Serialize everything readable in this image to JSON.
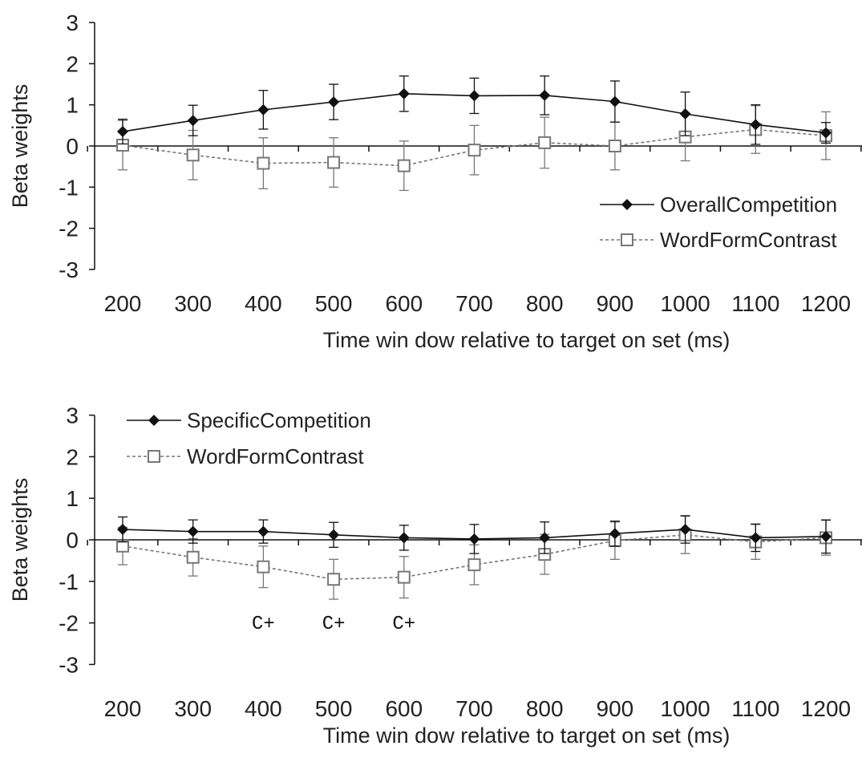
{
  "chart_data": [
    {
      "type": "line",
      "categories": [
        "200",
        "300",
        "400",
        "500",
        "600",
        "700",
        "800",
        "900",
        "1000",
        "1100",
        "1200"
      ],
      "xlabel": "Time win dow relative to target on set (ms)",
      "ylabel": "Beta weights",
      "ylim": [
        -3,
        3
      ],
      "yticks": [
        "3",
        "2",
        "1",
        "0",
        "-1",
        "-2",
        "-3"
      ],
      "grid": false,
      "legend_position": "bottom-right",
      "annotations": [],
      "series": [
        {
          "name": "OverallCompetition",
          "marker": "filled-diamond",
          "line": "solid",
          "color": "#111111",
          "values": [
            0.35,
            0.62,
            0.88,
            1.07,
            1.27,
            1.22,
            1.23,
            1.08,
            0.78,
            0.52,
            0.32
          ],
          "errors": [
            0.3,
            0.37,
            0.47,
            0.43,
            0.43,
            0.43,
            0.47,
            0.5,
            0.53,
            0.48,
            0.25
          ]
        },
        {
          "name": "WordFormContrast",
          "marker": "open-square",
          "line": "dashed",
          "color": "#777777",
          "values": [
            0.02,
            -0.22,
            -0.42,
            -0.4,
            -0.48,
            -0.1,
            0.08,
            0.0,
            0.22,
            0.4,
            0.25
          ],
          "errors": [
            0.6,
            0.6,
            0.62,
            0.6,
            0.6,
            0.6,
            0.62,
            0.58,
            0.58,
            0.58,
            0.58
          ]
        }
      ]
    },
    {
      "type": "line",
      "categories": [
        "200",
        "300",
        "400",
        "500",
        "600",
        "700",
        "800",
        "900",
        "1000",
        "1100",
        "1200"
      ],
      "xlabel": "Time win dow relative to target on set (ms)",
      "ylabel": "Beta weights",
      "ylim": [
        -3,
        3
      ],
      "yticks": [
        "3",
        "2",
        "1",
        "0",
        "-1",
        "-2",
        "-3"
      ],
      "grid": false,
      "legend_position": "top-left",
      "annotations": [
        {
          "x": "400",
          "text": "C+"
        },
        {
          "x": "500",
          "text": "C+"
        },
        {
          "x": "600",
          "text": "C+"
        }
      ],
      "series": [
        {
          "name": "SpecificCompetition",
          "marker": "filled-diamond",
          "line": "solid",
          "color": "#111111",
          "values": [
            0.25,
            0.2,
            0.2,
            0.12,
            0.05,
            0.02,
            0.05,
            0.15,
            0.25,
            0.05,
            0.08
          ],
          "errors": [
            0.3,
            0.28,
            0.28,
            0.3,
            0.3,
            0.35,
            0.38,
            0.3,
            0.33,
            0.33,
            0.4
          ]
        },
        {
          "name": "WordFormContrast",
          "marker": "open-square",
          "line": "dashed",
          "color": "#777777",
          "values": [
            -0.15,
            -0.42,
            -0.65,
            -0.95,
            -0.9,
            -0.6,
            -0.35,
            -0.02,
            0.12,
            -0.05,
            0.05
          ],
          "errors": [
            0.45,
            0.45,
            0.5,
            0.48,
            0.5,
            0.48,
            0.48,
            0.45,
            0.45,
            0.42,
            0.42
          ]
        }
      ]
    }
  ]
}
